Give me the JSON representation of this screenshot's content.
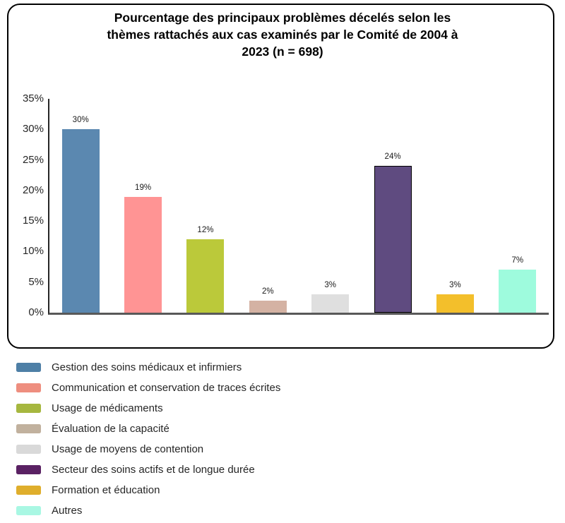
{
  "chart_data": {
    "type": "bar",
    "title": "Pourcentage des principaux problèmes décelés selon les thèmes rattachés aux cas examinés par le Comité de 2004 à 2023 (n = 698)",
    "title_lines": [
      "Pourcentage des principaux problèmes décelés selon les",
      "thèmes rattachés aux cas examinés par le Comité de 2004 à",
      "2023 (n = 698)"
    ],
    "categories": [
      "Gestion des soins médicaux et infirmiers",
      "Communication et conservation de traces écrites",
      "Usage de médicaments",
      "Évaluation de la capacité",
      "Usage de moyens de contention",
      "Secteur des soins actifs et de longue durée",
      "Formation et éducation",
      "Autres"
    ],
    "values": [
      30,
      19,
      12,
      2,
      3,
      24,
      3,
      7
    ],
    "value_labels": [
      "30%",
      "19%",
      "12%",
      "2%",
      "3%",
      "24%",
      "3%",
      "7%"
    ],
    "bar_colors": [
      "#5B88B0",
      "#FF9494",
      "#BBC93A",
      "#D4B2A3",
      "#DFDFDF",
      "#5F4B80",
      "#F3BF2B",
      "#9EFBDD"
    ],
    "bar_outlines": [
      null,
      null,
      null,
      null,
      null,
      "#000000",
      null,
      null
    ],
    "legend_colors": [
      "#4E7FA6",
      "#EE8E7F",
      "#A6B73F",
      "#C1B19E",
      "#D9D9D9",
      "#5A2163",
      "#DFAE2C",
      "#A9F7E3"
    ],
    "xlabel": "",
    "ylabel": "",
    "ylim": [
      0,
      35
    ],
    "ytick_step": 5,
    "yticks": [
      "0%",
      "5%",
      "10%",
      "15%",
      "20%",
      "25%",
      "30%",
      "35%"
    ],
    "grid": false,
    "legend_position": "bottom",
    "axis_color_y": "#262626",
    "axis_color_x": "#595959"
  }
}
